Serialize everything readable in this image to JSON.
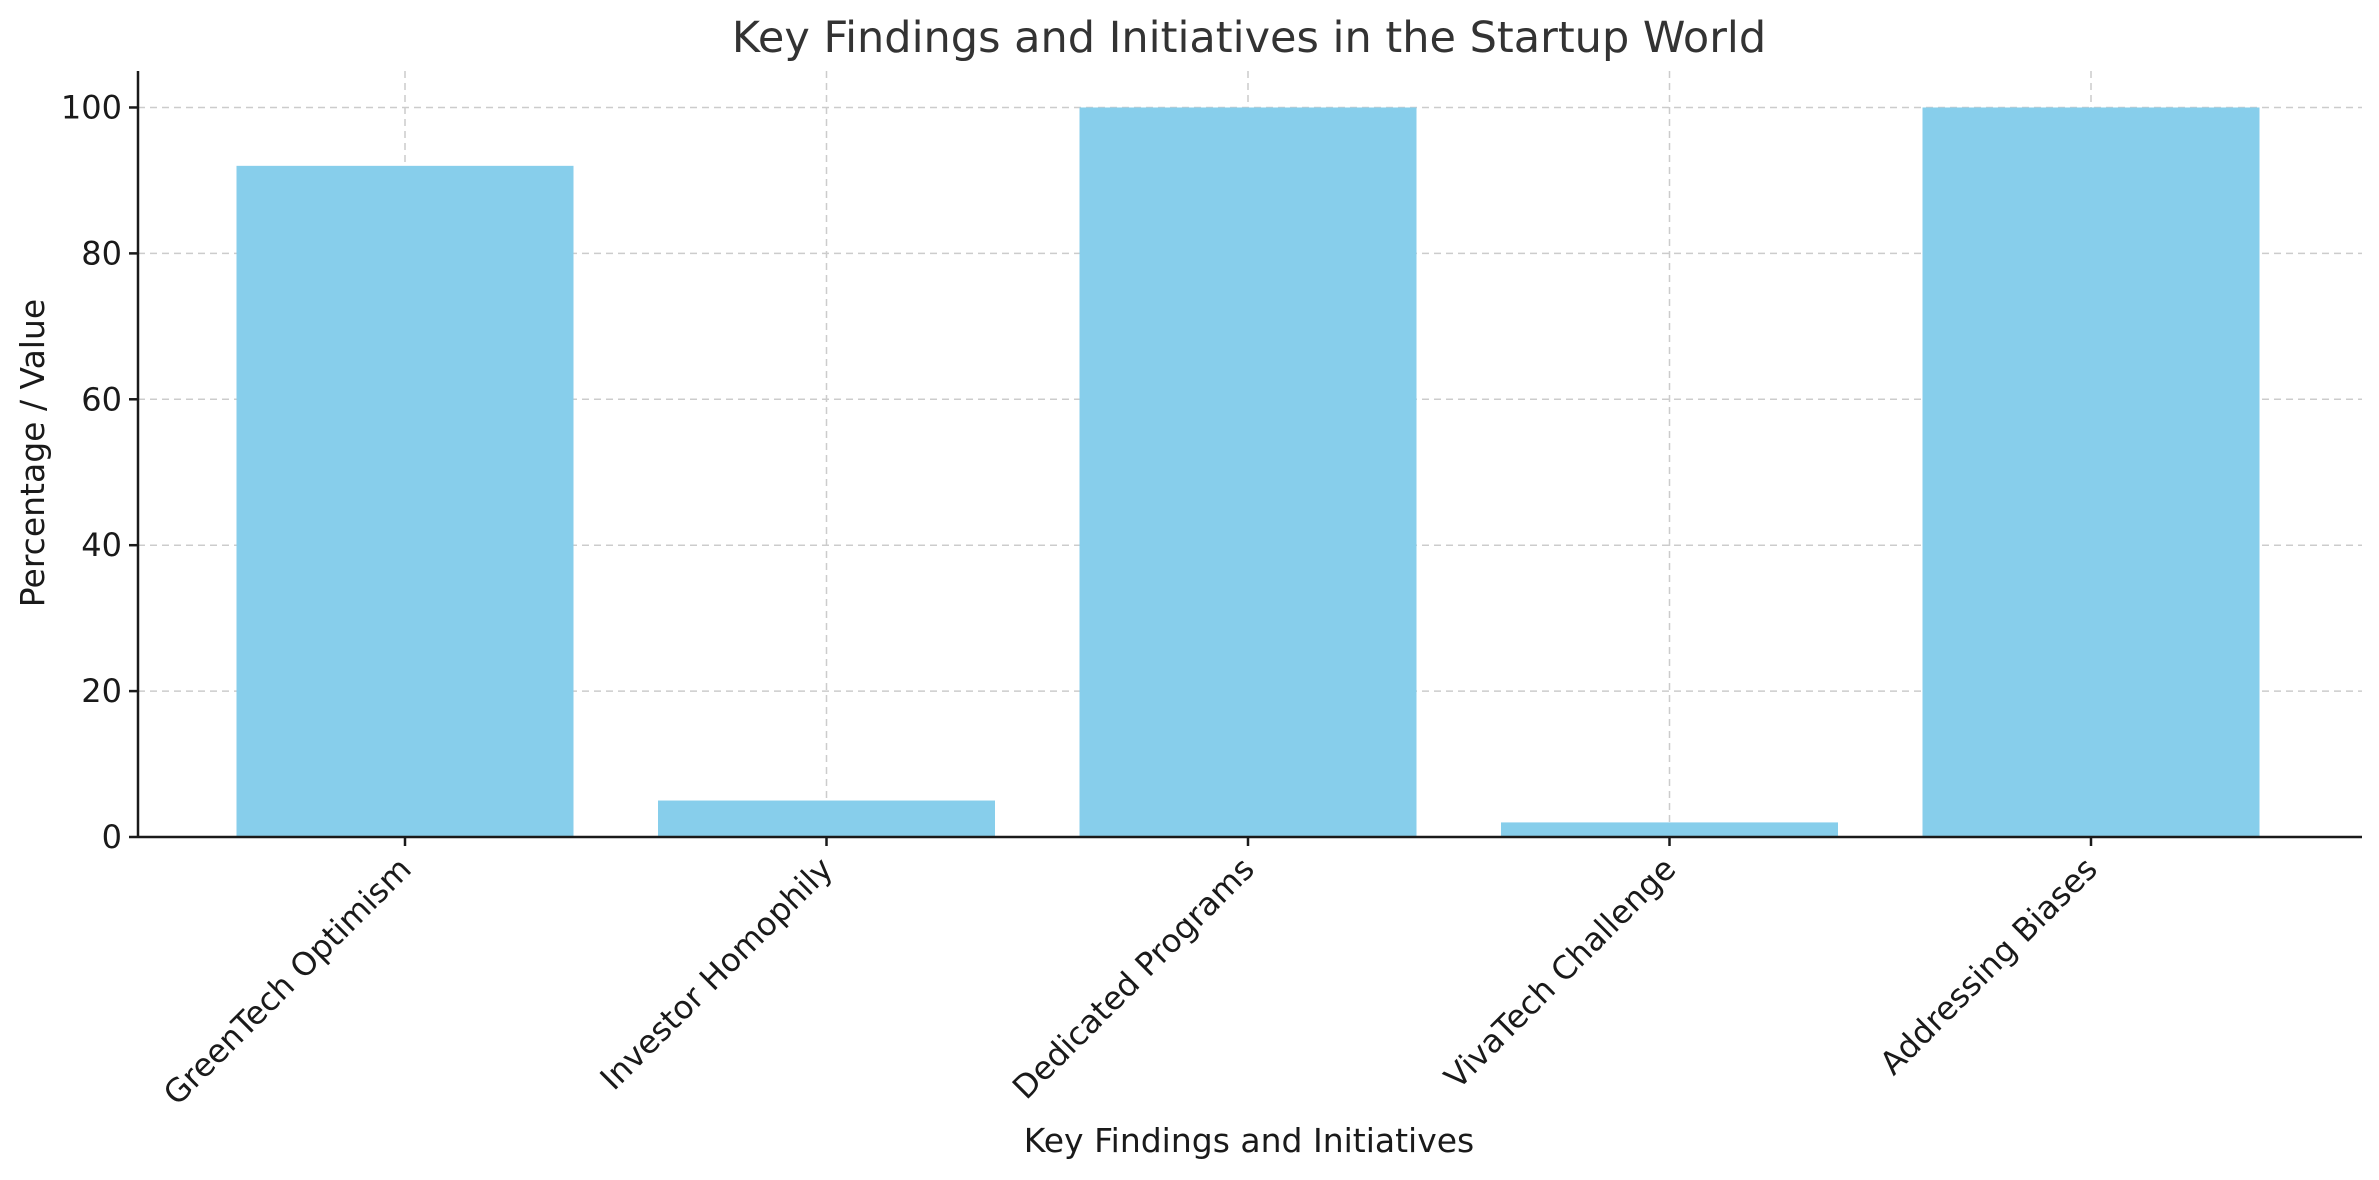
{
  "chart_data": {
    "type": "bar",
    "title": "Key Findings and Initiatives in the Startup World",
    "xlabel": "Key Findings and Initiatives",
    "ylabel": "Percentage / Value",
    "categories": [
      "GreenTech Optimism",
      "Investor Homophily",
      "Dedicated Programs",
      "VivaTech Challenge",
      "Addressing Biases"
    ],
    "values": [
      92,
      5,
      100,
      2,
      100
    ],
    "ylim": [
      0,
      105
    ],
    "yticks": [
      0,
      20,
      40,
      60,
      80,
      100
    ],
    "grid": true,
    "bar_color": "#87CEEB"
  }
}
